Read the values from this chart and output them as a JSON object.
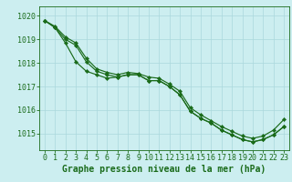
{
  "bg_color": "#cceef0",
  "grid_color": "#aad8dc",
  "line_color": "#1a6b1a",
  "marker_color": "#1a6b1a",
  "xlabel": "Graphe pression niveau de la mer (hPa)",
  "xlabel_fontsize": 7,
  "tick_fontsize": 6,
  "ytick_labels": [
    1015,
    1016,
    1017,
    1018,
    1019,
    1020
  ],
  "xtick_labels": [
    0,
    1,
    2,
    3,
    4,
    5,
    6,
    7,
    8,
    9,
    10,
    11,
    12,
    13,
    14,
    15,
    16,
    17,
    18,
    19,
    20,
    21,
    22,
    23
  ],
  "ylim": [
    1014.3,
    1020.4
  ],
  "xlim": [
    -0.5,
    23.5
  ],
  "top_y": [
    1019.8,
    1019.55,
    1019.1,
    1018.85,
    1018.2,
    1017.75,
    1017.6,
    1017.5,
    1017.6,
    1017.55,
    1017.4,
    1017.35,
    1017.1,
    1016.8,
    1016.1,
    1015.8,
    1015.55,
    1015.3,
    1015.1,
    1014.9,
    1014.8,
    1014.9,
    1015.15,
    1015.6
  ],
  "mid_y": [
    1019.8,
    1019.5,
    1019.0,
    1018.75,
    1018.05,
    1017.65,
    1017.5,
    1017.4,
    1017.5,
    1017.5,
    1017.25,
    1017.25,
    1017.0,
    1016.65,
    1015.95,
    1015.65,
    1015.45,
    1015.15,
    1014.95,
    1014.75,
    1014.65,
    1014.75,
    1014.95,
    1015.3
  ],
  "bot_y": [
    1019.8,
    1019.5,
    1018.85,
    1018.05,
    1017.65,
    1017.5,
    1017.35,
    1017.4,
    1017.5,
    1017.5,
    1017.25,
    1017.25,
    1017.0,
    1016.65,
    1015.95,
    1015.65,
    1015.45,
    1015.15,
    1014.95,
    1014.75,
    1014.65,
    1014.75,
    1014.95,
    1015.3
  ]
}
